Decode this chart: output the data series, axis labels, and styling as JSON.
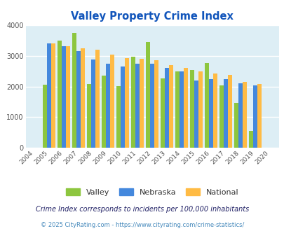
{
  "title": "Valley Property Crime Index",
  "years": [
    2004,
    2005,
    2006,
    2007,
    2008,
    2009,
    2010,
    2011,
    2012,
    2013,
    2014,
    2015,
    2016,
    2017,
    2018,
    2019,
    2020
  ],
  "valley": [
    0,
    2060,
    3510,
    3760,
    2090,
    2360,
    2010,
    2970,
    3450,
    2260,
    2500,
    2550,
    2780,
    2050,
    1470,
    550,
    0
  ],
  "nebraska": [
    0,
    3420,
    3320,
    3150,
    2880,
    2740,
    2650,
    2760,
    2750,
    2620,
    2490,
    2210,
    2240,
    2250,
    2100,
    2050,
    0
  ],
  "national": [
    0,
    3420,
    3330,
    3250,
    3210,
    3050,
    2940,
    2920,
    2860,
    2700,
    2610,
    2490,
    2440,
    2380,
    2160,
    2080,
    0
  ],
  "valley_color": "#8DC63F",
  "nebraska_color": "#4488DD",
  "national_color": "#FFBB44",
  "plot_bg_color": "#ddeef5",
  "ylim": [
    0,
    4000
  ],
  "yticks": [
    0,
    1000,
    2000,
    3000,
    4000
  ],
  "legend_labels": [
    "Valley",
    "Nebraska",
    "National"
  ],
  "footnote1": "Crime Index corresponds to incidents per 100,000 inhabitants",
  "footnote2": "© 2025 CityRating.com - https://www.cityrating.com/crime-statistics/",
  "title_color": "#1155BB",
  "footnote1_color": "#222266",
  "footnote2_color": "#4488BB",
  "bar_width": 0.28
}
